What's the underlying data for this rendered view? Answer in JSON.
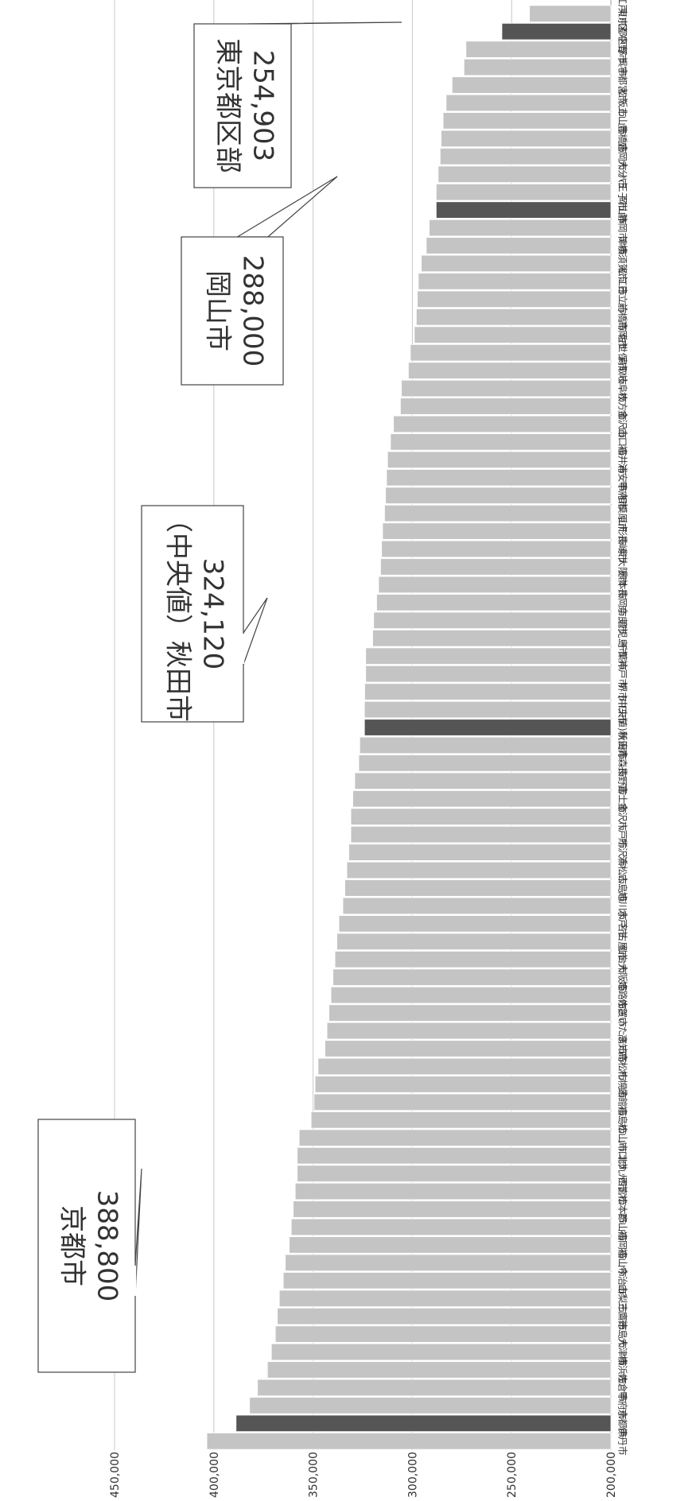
{
  "chart_data": {
    "type": "bar",
    "orientation": "horizontal",
    "title": "",
    "xlabel": "",
    "ylabel": "",
    "xlim": [
      200000,
      450000
    ],
    "xticks": [
      "200,000",
      "250,000",
      "300,000",
      "350,000",
      "400,000",
      "450,000"
    ],
    "grid": true,
    "colors": {
      "bar": "#c4c4c4",
      "highlight": "#555555"
    },
    "categories": [
      "伊丹市",
      "京都市",
      "甲府市",
      "佐倉市",
      "横浜市",
      "大津市",
      "徳島市",
      "三鷹市",
      "山梨市",
      "今治市",
      "福山市",
      "福岡市",
      "郡山市",
      "松本市",
      "西宮市",
      "北九州市",
      "川口市",
      "松山市",
      "福島市",
      "函館市",
      "札幌市",
      "高松市",
      "高知市",
      "さいたま市",
      "佐賀市",
      "姫路市",
      "大阪市",
      "仙台市",
      "名古屋市",
      "水戸市",
      "旭川市",
      "広島市",
      "浜松市",
      "所沢市",
      "八戸市",
      "金沢市",
      "富士市",
      "長野市",
      "青森市",
      "新潟市",
      "(中央値)秋田市",
      "川口市",
      "堺市",
      "神戸市",
      "千葉市",
      "鹿児島市",
      "奈良市",
      "長岡市",
      "熊本市",
      "東大阪市",
      "長崎市",
      "山形市",
      "相模原市",
      "甲府市",
      "浦安市",
      "福井市",
      "山口市",
      "金沢市",
      "枚方市",
      "岐阜市",
      "鳥取市",
      "佐世保市",
      "高岡市",
      "前橋市",
      "日立市",
      "松江市",
      "横須賀市",
      "津市",
      "静岡市",
      "岡山市",
      "八王子市",
      "大分市",
      "盛岡市",
      "豊橋市",
      "上山市",
      "松阪市",
      "宇都宮市",
      "呉市",
      "中野市",
      "東京都区部",
      "江戸川区"
    ],
    "values": [
      403500,
      388800,
      382000,
      378000,
      373000,
      371000,
      369000,
      368000,
      367000,
      365000,
      364000,
      362000,
      361000,
      360000,
      359000,
      358000,
      358000,
      357000,
      351000,
      349500,
      349000,
      347500,
      344000,
      343000,
      342000,
      341000,
      340000,
      339000,
      338000,
      337000,
      335000,
      334000,
      333000,
      332000,
      331000,
      331000,
      330000,
      329000,
      327000,
      326500,
      324120,
      324120,
      324000,
      323500,
      323500,
      320000,
      319500,
      318000,
      317000,
      316000,
      315500,
      315000,
      314000,
      313500,
      313000,
      312500,
      311000,
      309500,
      306000,
      305500,
      302000,
      301000,
      299000,
      298000,
      297500,
      297000,
      295500,
      293000,
      291500,
      288000,
      288000,
      287000,
      286000,
      285500,
      284500,
      283000,
      280000,
      274000,
      273000,
      254903,
      241000
    ],
    "highlight": [
      "京都市",
      "(中央値)秋田市",
      "岡山市",
      "東京都区部"
    ],
    "annotations": [
      {
        "category": "京都市",
        "line1": "京都市",
        "line2": "388,800"
      },
      {
        "category": "(中央値)秋田市",
        "line1": "（中央値）秋田市",
        "line2": "324,120"
      },
      {
        "category": "岡山市",
        "line1": "岡山市",
        "line2": "288,000"
      },
      {
        "category": "東京都区部",
        "line1": "東京都区部",
        "line2": "254,903"
      }
    ]
  }
}
